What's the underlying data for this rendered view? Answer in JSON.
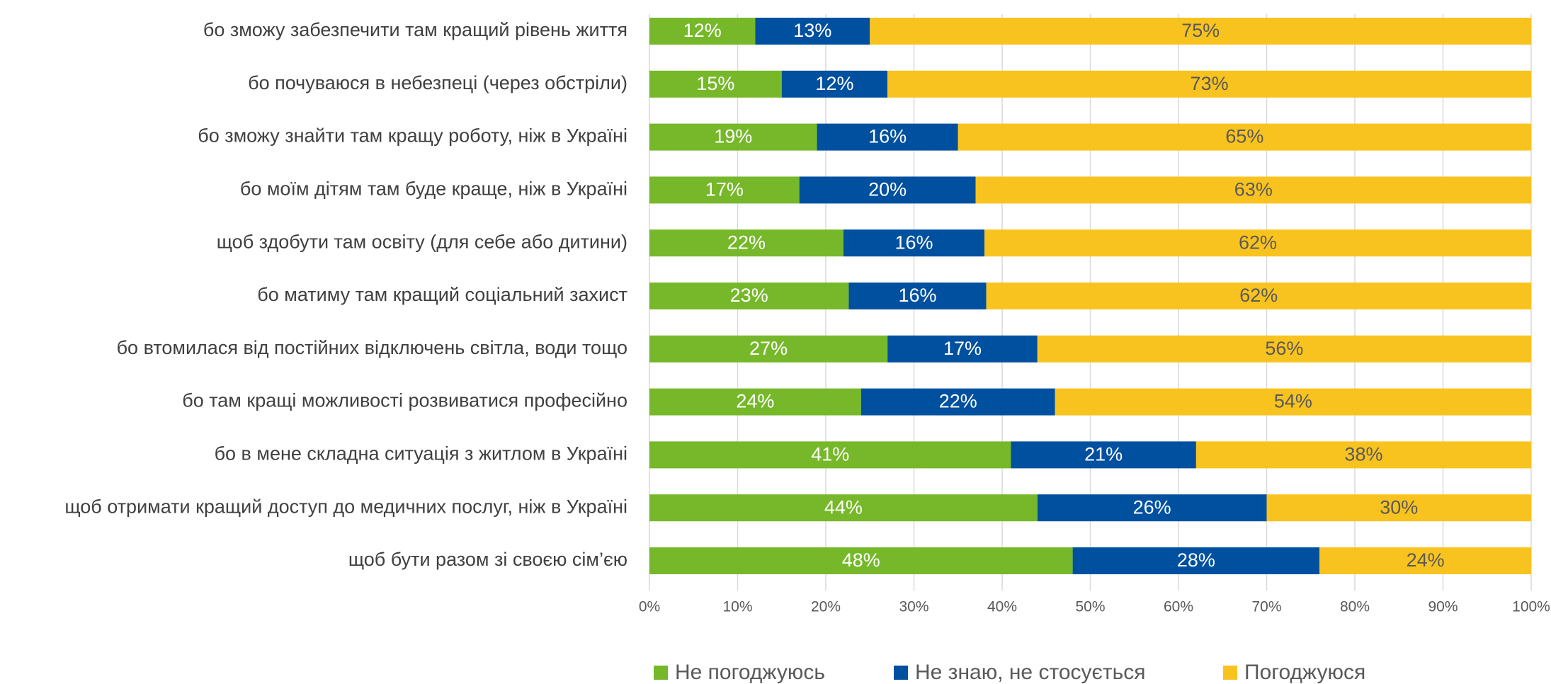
{
  "chart_data": {
    "type": "stacked_barh",
    "categories": [
      "бо зможу забезпечити там кращий рівень життя",
      "бо почуваюся в небезпеці (через обстріли)",
      "бо зможу знайти там кращу роботу, ніж в Україні",
      "бо моїм дітям там буде краще, ніж в Україні",
      "щоб здобути там освіту (для себе або дитини)",
      "бо матиму там кращий соціальний захист",
      "бо втомилася від постійних відключень світла, води тощо",
      "бо там кращі можливості розвиватися професійно",
      "бо в мене складна ситуація з житлом в Україні",
      "щоб отримати кращий доступ до медичних послуг, ніж в Україні",
      "щоб бути разом зі своєю сім’єю"
    ],
    "series": [
      {
        "name": "Не погоджуюсь",
        "color": "#76b82a",
        "values": [
          12,
          15,
          19,
          17,
          22,
          22.6,
          27,
          24,
          41,
          44,
          48
        ],
        "value_labels": [
          "12%",
          "15%",
          "19%",
          "17%",
          "22%",
          "23%",
          "27%",
          "24%",
          "41%",
          "44%",
          "48%"
        ]
      },
      {
        "name": "Не знаю, не стосується",
        "color": "#0050a0",
        "values": [
          13,
          12,
          16,
          20,
          16,
          15.6,
          17,
          22,
          21,
          26,
          28
        ],
        "value_labels": [
          "13%",
          "12%",
          "16%",
          "20%",
          "16%",
          "16%",
          "17%",
          "22%",
          "21%",
          "26%",
          "28%"
        ]
      },
      {
        "name": "Погоджуюся",
        "color": "#f9c31f",
        "values": [
          75,
          73,
          65,
          63,
          62,
          61.8,
          56,
          54,
          38,
          30,
          24
        ],
        "value_labels": [
          "75%",
          "73%",
          "65%",
          "63%",
          "62%",
          "62%",
          "56%",
          "54%",
          "38%",
          "30%",
          "24%"
        ]
      }
    ],
    "xlim": [
      0,
      100
    ],
    "xticks": [
      {
        "value": 0,
        "label": "0%"
      },
      {
        "value": 10,
        "label": "10%"
      },
      {
        "value": 20,
        "label": "20%"
      },
      {
        "value": 30,
        "label": "30%"
      },
      {
        "value": 40,
        "label": "40%"
      },
      {
        "value": 50,
        "label": "50%"
      },
      {
        "value": 60,
        "label": "60%"
      },
      {
        "value": 70,
        "label": "70%"
      },
      {
        "value": 80,
        "label": "80%"
      },
      {
        "value": 90,
        "label": "90%"
      },
      {
        "value": 100,
        "label": "100%"
      }
    ],
    "grid": true,
    "legend": "bottom"
  }
}
